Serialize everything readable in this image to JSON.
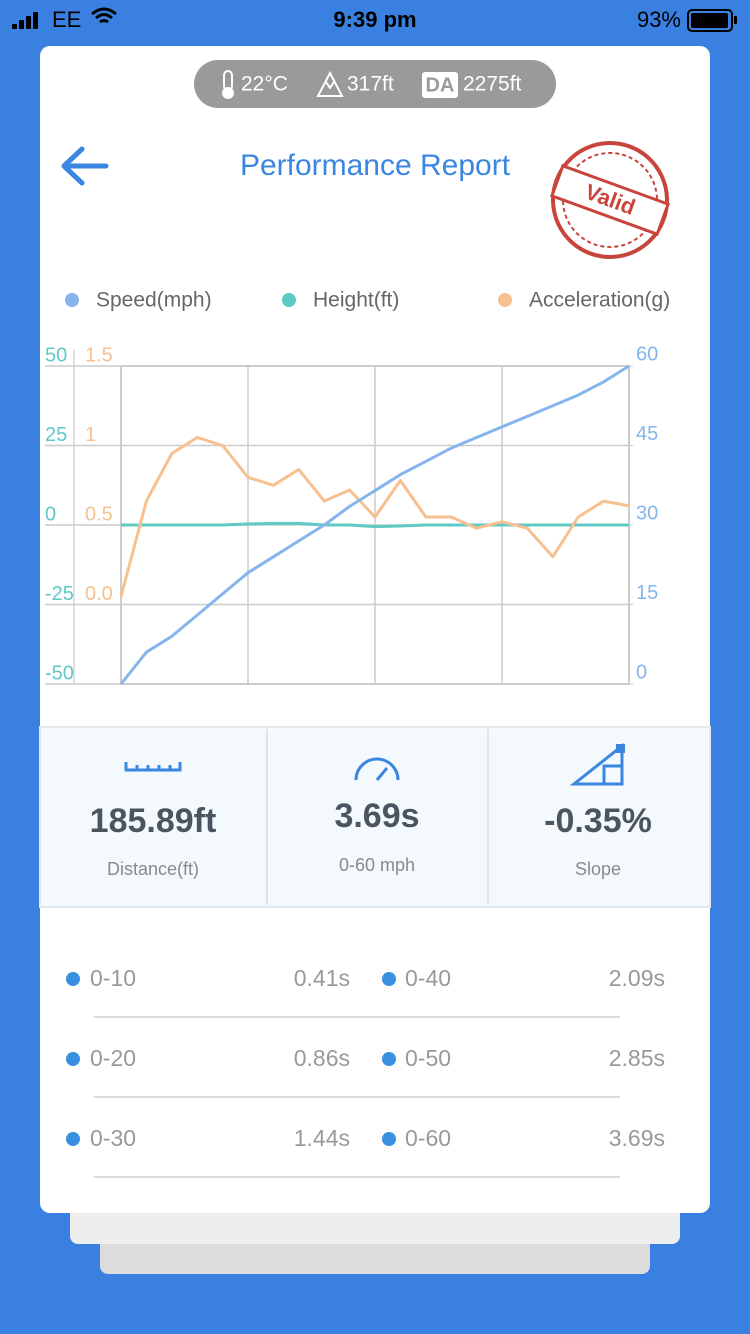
{
  "status_bar": {
    "carrier": "EE",
    "time": "9:39 pm",
    "battery": "93%"
  },
  "conditions": {
    "temperature": "22°C",
    "altitude": "317ft",
    "da_label": "DA",
    "density_altitude": "2275ft"
  },
  "header": {
    "title": "Performance Report",
    "stamp": "Valid"
  },
  "chart_data": {
    "type": "line",
    "series": [
      {
        "name": "Speed(mph)",
        "color": "#85b5ec",
        "axis": "y2",
        "values": [
          0,
          6,
          9,
          13,
          17,
          21,
          24,
          27,
          30,
          33.5,
          36.5,
          39.5,
          42,
          44.5,
          46.5,
          48.5,
          50.5,
          52.5,
          54.5,
          57,
          60
        ]
      },
      {
        "name": "Height(ft)",
        "color": "#5fc9c5",
        "axis": "y",
        "values": [
          0,
          0,
          0,
          0,
          0,
          0.3,
          0.5,
          0.5,
          0,
          0,
          -0.5,
          -0.3,
          0,
          0,
          0,
          0,
          0,
          0,
          0,
          0,
          0
        ]
      },
      {
        "name": "Acceleration(g)",
        "color": "#f6c091",
        "axis": "y3",
        "values": [
          0.05,
          0.65,
          0.95,
          1.05,
          1.0,
          0.8,
          0.75,
          0.85,
          0.65,
          0.72,
          0.55,
          0.78,
          0.55,
          0.55,
          0.48,
          0.52,
          0.48,
          0.3,
          0.55,
          0.65,
          0.62
        ]
      }
    ],
    "ylim": [
      -50,
      50
    ],
    "yticks": [
      -50,
      -25,
      0,
      25,
      50
    ],
    "y2lim": [
      0,
      60
    ],
    "y2ticks": [
      0,
      15,
      30,
      45,
      60
    ],
    "y3lim": [
      -0.5,
      1.5
    ],
    "y3ticks": [
      {
        "value": 0,
        "label": "0.0"
      },
      0.5,
      1,
      1.5
    ],
    "grid": true
  },
  "stats": [
    {
      "value": "185.89ft",
      "label": "Distance(ft)"
    },
    {
      "value": "3.69s",
      "label": "0-60 mph"
    },
    {
      "value": "-0.35%",
      "label": "Slope"
    }
  ],
  "splits": [
    {
      "label": "0-10",
      "time": "0.41s"
    },
    {
      "label": "0-20",
      "time": "0.86s"
    },
    {
      "label": "0-30",
      "time": "1.44s"
    },
    {
      "label": "0-40",
      "time": "2.09s"
    },
    {
      "label": "0-50",
      "time": "2.85s"
    },
    {
      "label": "0-60",
      "time": "3.69s"
    }
  ]
}
